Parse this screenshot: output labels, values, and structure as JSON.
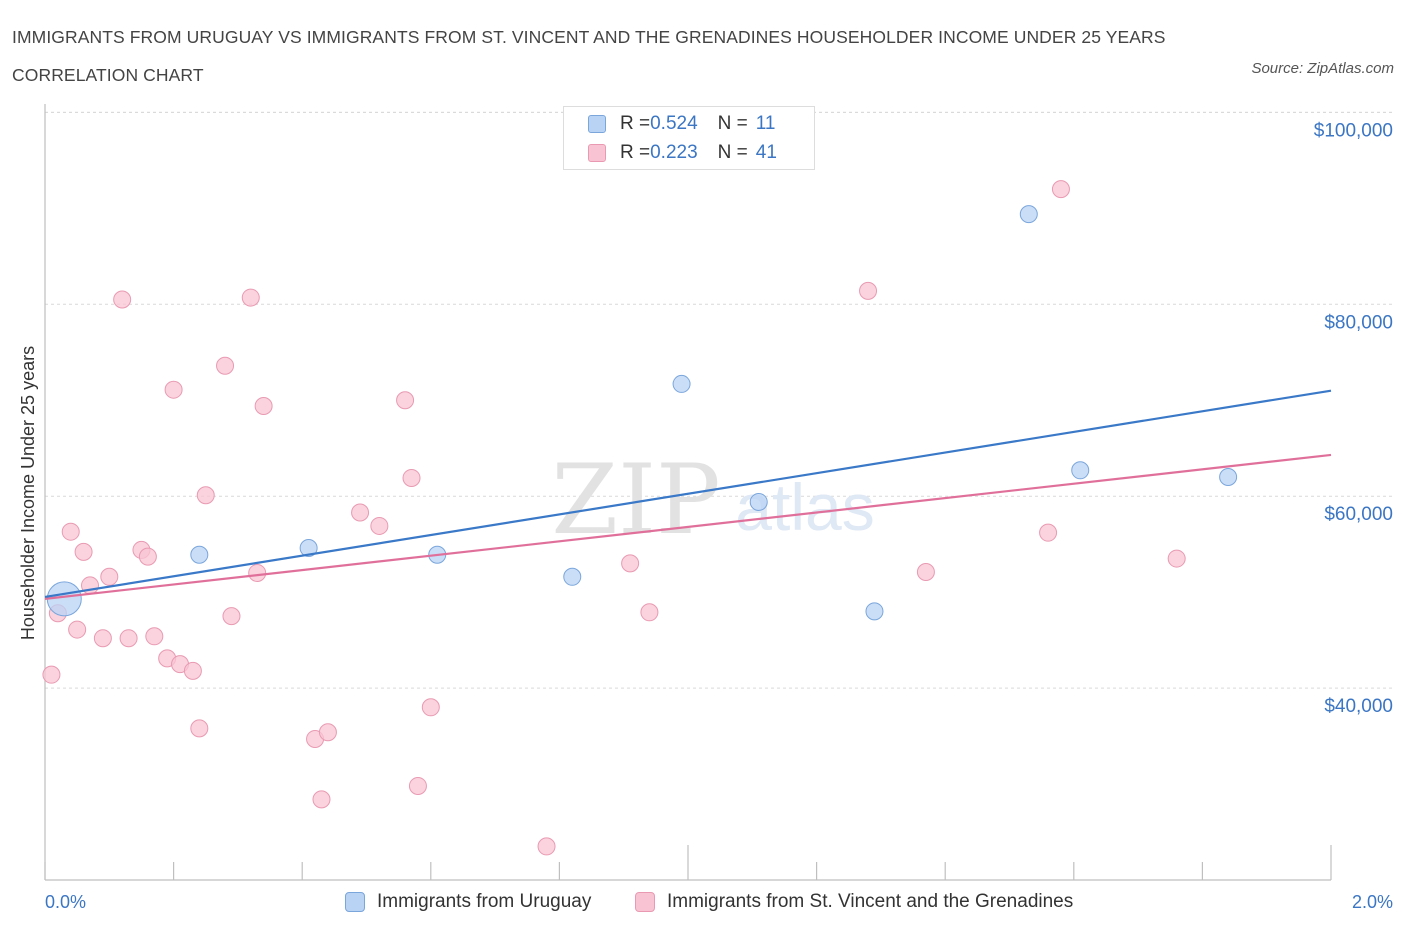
{
  "title": "IMMIGRANTS FROM URUGUAY VS IMMIGRANTS FROM ST. VINCENT AND THE GRENADINES HOUSEHOLDER INCOME UNDER 25 YEARS CORRELATION CHART",
  "source": "Source: ZipAtlas.com",
  "watermark": {
    "zip": "ZIP",
    "atlas": "atlas"
  },
  "colors": {
    "blue_fill": "#b9d3f4",
    "blue_stroke": "#7aa6dc",
    "blue_line": "#3a78c8",
    "pink_fill": "#f8c4d3",
    "pink_stroke": "#e99ab2",
    "pink_line": "#e0709a",
    "axis_label": "#3b76c4",
    "grid": "#d9d9d9"
  },
  "legend_top": {
    "rows": [
      {
        "r_label": "R = ",
        "r_value": "0.524",
        "n_label": "N = ",
        "n_value": "11"
      },
      {
        "r_label": "R = ",
        "r_value": "0.223",
        "n_label": "N = ",
        "n_value": "41"
      }
    ]
  },
  "legend_bottom": {
    "items": [
      "Immigrants from Uruguay",
      "Immigrants from St. Vincent and the Grenadines"
    ]
  },
  "chart_data": {
    "type": "scatter",
    "title": "IMMIGRANTS FROM URUGUAY VS IMMIGRANTS FROM ST. VINCENT AND THE GRENADINES HOUSEHOLDER INCOME UNDER 25 YEARS CORRELATION CHART",
    "xlabel": "",
    "ylabel": "Householder Income Under 25 years",
    "xlim": [
      0,
      2.0
    ],
    "ylim": [
      20000,
      101500
    ],
    "x_tick_labels": [
      "0.0%",
      "2.0%"
    ],
    "y_ticks": [
      40000,
      60000,
      80000,
      100000
    ],
    "y_tick_labels": [
      "$40,000",
      "$60,000",
      "$80,000",
      "$100,000"
    ],
    "grid": true,
    "series": [
      {
        "name": "Immigrants from Uruguay",
        "R": 0.524,
        "N": 11,
        "points": [
          [
            0.03,
            49300,
            3
          ],
          [
            0.24,
            53900,
            1
          ],
          [
            0.41,
            54600,
            1
          ],
          [
            0.61,
            53900,
            1
          ],
          [
            0.82,
            51600,
            1
          ],
          [
            0.99,
            71700,
            1
          ],
          [
            1.11,
            59400,
            1
          ],
          [
            1.29,
            48000,
            1
          ],
          [
            1.53,
            89400,
            1
          ],
          [
            1.61,
            62700,
            1
          ],
          [
            1.84,
            62000,
            1
          ]
        ],
        "trend": [
          [
            0.0,
            49500
          ],
          [
            2.0,
            71000
          ]
        ]
      },
      {
        "name": "Immigrants from St. Vincent and the Grenadines",
        "R": 0.223,
        "N": 41,
        "points": [
          [
            0.01,
            41400
          ],
          [
            0.02,
            47800
          ],
          [
            0.04,
            56300
          ],
          [
            0.05,
            46100
          ],
          [
            0.06,
            54200
          ],
          [
            0.07,
            50700
          ],
          [
            0.09,
            45200
          ],
          [
            0.1,
            51600
          ],
          [
            0.12,
            80500
          ],
          [
            0.13,
            45200
          ],
          [
            0.15,
            54400
          ],
          [
            0.16,
            53700
          ],
          [
            0.17,
            45400
          ],
          [
            0.19,
            43100
          ],
          [
            0.2,
            71100
          ],
          [
            0.21,
            42500
          ],
          [
            0.23,
            41800
          ],
          [
            0.24,
            35800
          ],
          [
            0.25,
            60100
          ],
          [
            0.28,
            73600
          ],
          [
            0.29,
            47500
          ],
          [
            0.32,
            80700
          ],
          [
            0.33,
            52000
          ],
          [
            0.34,
            69400
          ],
          [
            0.42,
            34700
          ],
          [
            0.43,
            28400
          ],
          [
            0.44,
            35400
          ],
          [
            0.49,
            58300
          ],
          [
            0.52,
            56900
          ],
          [
            0.56,
            70000
          ],
          [
            0.57,
            61900
          ],
          [
            0.58,
            29800
          ],
          [
            0.6,
            38000
          ],
          [
            0.78,
            23500
          ],
          [
            0.91,
            53000
          ],
          [
            0.94,
            47900
          ],
          [
            1.28,
            81400
          ],
          [
            1.37,
            52100
          ],
          [
            1.56,
            56200
          ],
          [
            1.58,
            92000
          ],
          [
            1.76,
            53500
          ]
        ],
        "trend": [
          [
            0.0,
            49300
          ],
          [
            2.0,
            64300
          ]
        ]
      }
    ]
  }
}
